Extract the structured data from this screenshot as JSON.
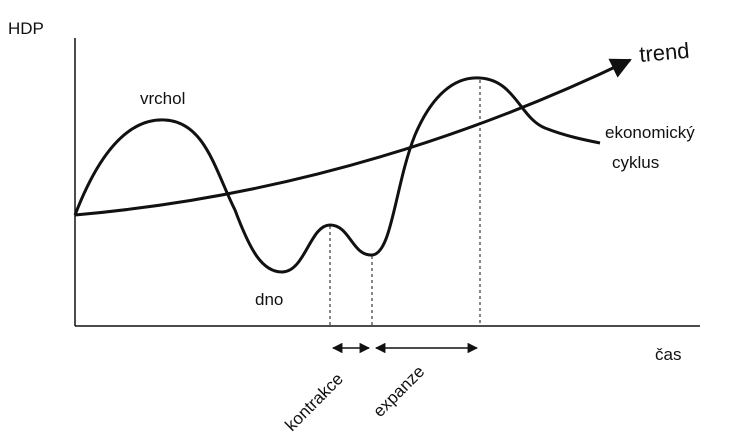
{
  "axes": {
    "y_label": "HDP",
    "x_label": "čas"
  },
  "labels": {
    "peak": "vrchol",
    "trough": "dno",
    "trend": "trend",
    "cycle_line1": "ekonomický",
    "cycle_line2": "cyklus"
  },
  "phases": {
    "contraction": "kontrakce",
    "expansion": "expanze"
  }
}
